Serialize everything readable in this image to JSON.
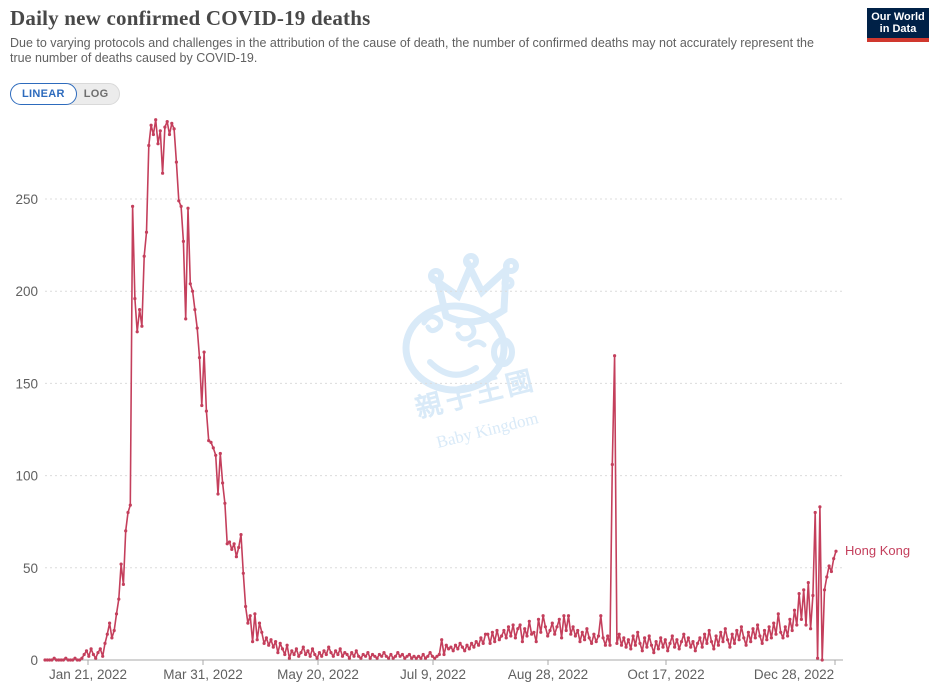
{
  "header": {
    "title": "Daily new confirmed COVID-19 deaths",
    "subtitle": "Due to varying protocols and challenges in the attribution of the cause of death, the number of confirmed deaths may not accurately represent the true number of deaths caused by COVID-19.",
    "logo": {
      "line1": "Our World",
      "line2": "in Data",
      "bg_color": "#002147",
      "accent_color": "#d0382e"
    }
  },
  "controls": {
    "linear_label": "LINEAR",
    "log_label": "LOG",
    "active": "LINEAR",
    "accent_color": "#2d6bbd"
  },
  "watermark": {
    "text_cn": "親子王國",
    "text_en": "Baby Kingdom",
    "color": "#d9eaf8"
  },
  "chart_data": {
    "type": "line",
    "title": "Daily new confirmed COVID-19 deaths",
    "entity": "Hong Kong",
    "series_color": "#c43f5c",
    "grid": true,
    "x_start_date": "2022-01-21",
    "x_tick_labels": [
      "Jan 21, 2022",
      "Mar 31, 2022",
      "May 20, 2022",
      "Jul 9, 2022",
      "Aug 28, 2022",
      "Oct 17, 2022",
      "Dec 28, 2022"
    ],
    "y_ticks": [
      0,
      50,
      100,
      150,
      200,
      250
    ],
    "ylim": [
      0,
      300
    ],
    "series": [
      {
        "name": "Hong Kong",
        "values": [
          0,
          0,
          0,
          0,
          1,
          0,
          0,
          0,
          0,
          1,
          0,
          0,
          0,
          1,
          0,
          0,
          1,
          3,
          5,
          2,
          6,
          3,
          1,
          4,
          6,
          2,
          9,
          14,
          20,
          12,
          16,
          25,
          33,
          52,
          41,
          70,
          80,
          84,
          246,
          196,
          178,
          190,
          181,
          219,
          232,
          279,
          290,
          285,
          293,
          280,
          287,
          264,
          289,
          292,
          285,
          291,
          288,
          270,
          249,
          246,
          227,
          185,
          245,
          204,
          200,
          190,
          180,
          164,
          138,
          167,
          135,
          119,
          118,
          115,
          111,
          90,
          112,
          96,
          85,
          63,
          64,
          60,
          63,
          56,
          61,
          68,
          47,
          29,
          20,
          24,
          10,
          25,
          11,
          20,
          15,
          9,
          12,
          8,
          11,
          7,
          10,
          4,
          9,
          6,
          3,
          8,
          1,
          5,
          3,
          6,
          2,
          4,
          7,
          3,
          5,
          2,
          6,
          3,
          1,
          4,
          2,
          5,
          3,
          7,
          4,
          2,
          5,
          3,
          6,
          2,
          4,
          3,
          1,
          4,
          2,
          5,
          2,
          1,
          3,
          2,
          4,
          1,
          3,
          2,
          1,
          3,
          2,
          4,
          2,
          1,
          3,
          1,
          2,
          4,
          2,
          3,
          1,
          2,
          3,
          1,
          2,
          1,
          2,
          1,
          3,
          1,
          2,
          4,
          2,
          1,
          2,
          3,
          11,
          3,
          8,
          6,
          7,
          5,
          8,
          6,
          9,
          7,
          5,
          8,
          6,
          9,
          7,
          10,
          8,
          12,
          9,
          14,
          14,
          9,
          15,
          10,
          16,
          11,
          13,
          16,
          12,
          18,
          13,
          19,
          12,
          17,
          19,
          10,
          17,
          13,
          21,
          14,
          15,
          10,
          22,
          15,
          24,
          18,
          13,
          16,
          20,
          14,
          18,
          22,
          12,
          24,
          16,
          24,
          14,
          18,
          13,
          16,
          10,
          15,
          11,
          17,
          12,
          9,
          14,
          10,
          13,
          24,
          12,
          8,
          13,
          8,
          106,
          165,
          9,
          14,
          8,
          12,
          7,
          11,
          6,
          13,
          8,
          15,
          9,
          5,
          12,
          7,
          13,
          8,
          4,
          10,
          6,
          12,
          7,
          11,
          5,
          9,
          13,
          7,
          11,
          6,
          10,
          14,
          8,
          12,
          7,
          10,
          5,
          9,
          12,
          7,
          14,
          9,
          16,
          10,
          6,
          13,
          8,
          15,
          10,
          17,
          11,
          7,
          14,
          9,
          16,
          11,
          18,
          12,
          8,
          15,
          10,
          17,
          12,
          19,
          13,
          9,
          16,
          11,
          18,
          12,
          20,
          14,
          25,
          15,
          12,
          18,
          13,
          22,
          16,
          27,
          19,
          36,
          22,
          38,
          19,
          42,
          17,
          35,
          80,
          1,
          83,
          0,
          38,
          45,
          51,
          48,
          55,
          59
        ]
      }
    ]
  }
}
